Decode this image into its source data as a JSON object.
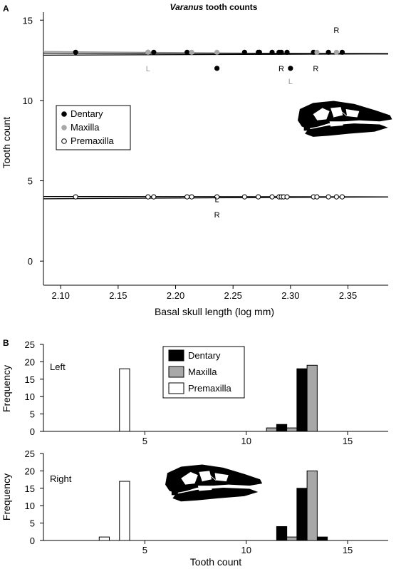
{
  "colors": {
    "dentary": "#000000",
    "maxilla": "#a8a8a8",
    "premaxilla": "#ffffff",
    "ink": "#000000",
    "marker_gray": "#999999"
  },
  "chart_data": [
    {
      "panel": "A",
      "type": "scatter",
      "title_italic": "Varanus",
      "title_rest": " tooth counts",
      "xlabel": "Basal skull length (log mm)",
      "ylabel": "Tooth count",
      "xlim": [
        2.085,
        2.385
      ],
      "ylim": [
        -1.5,
        15.5
      ],
      "xticks": [
        2.1,
        2.15,
        2.2,
        2.25,
        2.3,
        2.35
      ],
      "xtick_labels": [
        "2.10",
        "2.15",
        "2.20",
        "2.25",
        "2.30",
        "2.35"
      ],
      "yticks": [
        0,
        5,
        10,
        15
      ],
      "ytick_labels": [
        "0",
        "5",
        "10",
        "15"
      ],
      "legend": {
        "placement": "middle-left",
        "items": [
          {
            "label": "Dentary",
            "color": "#000000"
          },
          {
            "label": "Maxilla",
            "color": "#a8a8a8"
          },
          {
            "label": "Premaxilla",
            "color": "#ffffff"
          }
        ]
      },
      "series": [
        {
          "name": "Dentary",
          "points": [
            [
              2.113,
              13
            ],
            [
              2.176,
              13
            ],
            [
              2.181,
              13
            ],
            [
              2.21,
              13
            ],
            [
              2.26,
              13
            ],
            [
              2.272,
              13
            ],
            [
              2.273,
              13
            ],
            [
              2.284,
              13
            ],
            [
              2.29,
              13
            ],
            [
              2.292,
              13
            ],
            [
              2.297,
              13
            ],
            [
              2.32,
              13
            ],
            [
              2.333,
              13
            ],
            [
              2.345,
              13
            ],
            [
              2.236,
              12
            ],
            [
              2.3,
              12
            ]
          ]
        },
        {
          "name": "Maxilla",
          "points": [
            [
              2.176,
              13
            ],
            [
              2.214,
              13
            ],
            [
              2.236,
              13
            ],
            [
              2.323,
              13
            ],
            [
              2.34,
              13
            ]
          ]
        },
        {
          "name": "Premaxilla",
          "points": [
            [
              2.113,
              4
            ],
            [
              2.176,
              4
            ],
            [
              2.181,
              4
            ],
            [
              2.21,
              4
            ],
            [
              2.214,
              4
            ],
            [
              2.236,
              4
            ],
            [
              2.26,
              4
            ],
            [
              2.272,
              4
            ],
            [
              2.284,
              4
            ],
            [
              2.29,
              4
            ],
            [
              2.292,
              4
            ],
            [
              2.294,
              4
            ],
            [
              2.297,
              4
            ],
            [
              2.32,
              4
            ],
            [
              2.323,
              4
            ],
            [
              2.333,
              4
            ],
            [
              2.34,
              4
            ],
            [
              2.345,
              4
            ]
          ]
        }
      ],
      "fit_lines": [
        {
          "y": [
            13.05,
            12.88
          ],
          "color": "#999999"
        },
        {
          "y": [
            12.95,
            12.92
          ],
          "color": "#000000"
        },
        {
          "y": [
            12.82,
            12.9
          ],
          "color": "#000000"
        },
        {
          "y": [
            4.02,
            4.0
          ],
          "color": "#000000"
        },
        {
          "y": [
            3.88,
            4.0
          ],
          "color": "#000000"
        }
      ],
      "annotations": [
        {
          "text": "R",
          "x": 2.34,
          "y": 14.4,
          "color": "#000000"
        },
        {
          "text": "L",
          "x": 2.176,
          "y": 12.0,
          "color": "#999999"
        },
        {
          "text": "R",
          "x": 2.292,
          "y": 12.0,
          "color": "#000000"
        },
        {
          "text": "R",
          "x": 2.322,
          "y": 12.0,
          "color": "#000000"
        },
        {
          "text": "L",
          "x": 2.3,
          "y": 11.2,
          "color": "#999999"
        },
        {
          "text": "L",
          "x": 2.236,
          "y": 3.85,
          "color": "#000000"
        },
        {
          "text": "R",
          "x": 2.236,
          "y": 2.9,
          "color": "#000000"
        }
      ]
    },
    {
      "panel": "B",
      "type": "bar",
      "subpanel_label": "Left",
      "xlabel": "",
      "ylabel": "Frequency",
      "xlim": [
        0,
        17
      ],
      "ylim": [
        0,
        25
      ],
      "xticks": [
        5,
        10,
        15
      ],
      "xtick_labels": [
        "5",
        "10",
        "15"
      ],
      "yticks": [
        0,
        5,
        10,
        15,
        20,
        25
      ],
      "ytick_labels": [
        "0",
        "5",
        "10",
        "15",
        "20",
        "25"
      ],
      "legend": {
        "placement": "top-center",
        "items": [
          {
            "label": "Dentary",
            "color": "#000000"
          },
          {
            "label": "Maxilla",
            "color": "#a8a8a8"
          },
          {
            "label": "Premaxilla",
            "color": "#ffffff"
          }
        ]
      },
      "series": [
        {
          "name": "Dentary",
          "x": [
            12,
            13
          ],
          "values": [
            2,
            18
          ]
        },
        {
          "name": "Maxilla",
          "x": [
            12,
            13
          ],
          "values": [
            1,
            19
          ]
        },
        {
          "name": "Premaxilla",
          "x": [
            4
          ],
          "values": [
            18
          ]
        }
      ],
      "extra_bars": [
        {
          "name": "Maxilla",
          "x": 11,
          "value": 1
        }
      ]
    },
    {
      "panel": "B",
      "type": "bar",
      "subpanel_label": "Right",
      "xlabel": "Tooth count",
      "ylabel": "Frequency",
      "xlim": [
        0,
        17
      ],
      "ylim": [
        0,
        25
      ],
      "xticks": [
        5,
        10,
        15
      ],
      "xtick_labels": [
        "5",
        "10",
        "15"
      ],
      "yticks": [
        0,
        5,
        10,
        15,
        20,
        25
      ],
      "ytick_labels": [
        "0",
        "5",
        "10",
        "15",
        "20",
        "25"
      ],
      "series": [
        {
          "name": "Dentary",
          "x": [
            12,
            13,
            14
          ],
          "values": [
            4,
            15,
            1
          ]
        },
        {
          "name": "Maxilla",
          "x": [
            12,
            13
          ],
          "values": [
            1,
            20
          ]
        },
        {
          "name": "Premaxilla",
          "x": [
            3,
            4
          ],
          "values": [
            1,
            17
          ]
        }
      ]
    }
  ],
  "panel_labels": {
    "a": "A",
    "b": "B"
  }
}
